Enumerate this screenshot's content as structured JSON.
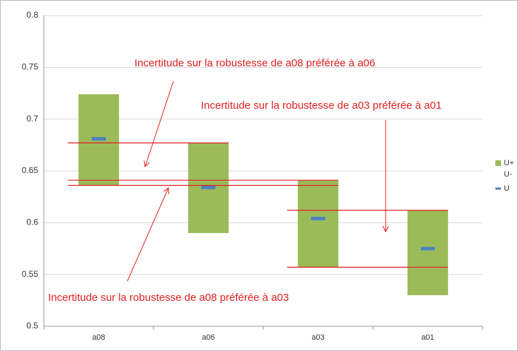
{
  "chart_data": {
    "type": "range_bar",
    "categories": [
      "a08",
      "a06",
      "a03",
      "a01"
    ],
    "series": [
      {
        "name": "U+",
        "color": "#9bbb59",
        "values": [
          0.724,
          0.677,
          0.641,
          0.612
        ]
      },
      {
        "name": "U-",
        "color": "#9bbb59",
        "values": [
          0.636,
          0.59,
          0.557,
          0.53
        ]
      },
      {
        "name": "U",
        "color": "#4f81bd",
        "values": [
          0.681,
          0.634,
          0.604,
          0.575
        ]
      }
    ],
    "ylim": [
      0.5,
      0.8
    ],
    "yticks": [
      0.5,
      0.55,
      0.6,
      0.65,
      0.7,
      0.75,
      0.8
    ],
    "grid": true,
    "legend": "right",
    "annotations": [
      "Incertitude sur la robustesse de a08 préférée à a06",
      "Incertitude sur la robustesse de a03 préférée à a01",
      "Incertitude sur la robustesse de a08 préférée à a03"
    ]
  }
}
